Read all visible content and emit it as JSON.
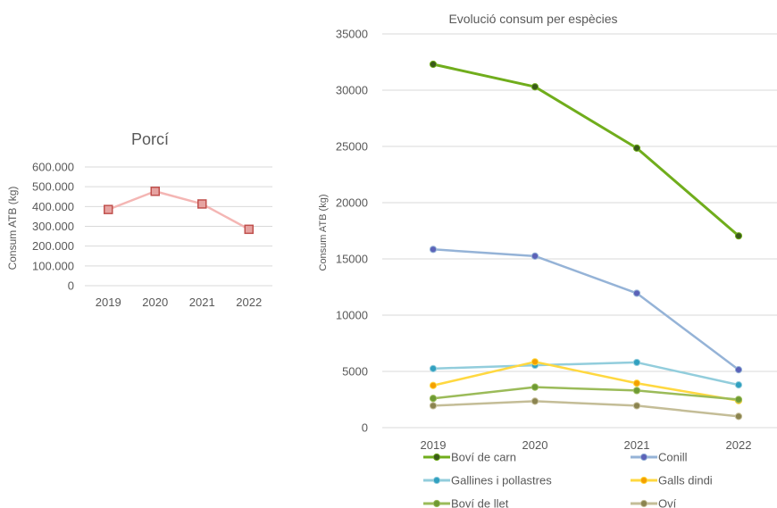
{
  "chart_data": [
    {
      "type": "line",
      "title": "Porcí",
      "xlabel": "",
      "ylabel": "Consum ATB (kg)",
      "categories": [
        "2019",
        "2020",
        "2021",
        "2022"
      ],
      "ylim": [
        0,
        600000
      ],
      "yticks": [
        "0",
        "100.000",
        "200.000",
        "300.000",
        "400.000",
        "500.000",
        "600.000"
      ],
      "grid": true,
      "series": [
        {
          "values": [
            385000,
            477000,
            413000,
            285000
          ],
          "color": "#f4b6b4",
          "marker_color": "#c0504d",
          "marker_fill": "#e6a3a1"
        }
      ]
    },
    {
      "type": "line",
      "title": "Evolució consum per espècies",
      "xlabel": "",
      "ylabel": "Consum ATB (kg)",
      "categories": [
        "2019",
        "2020",
        "2021",
        "2022"
      ],
      "ylim": [
        0,
        35000
      ],
      "yticks": [
        "0",
        "5000",
        "10000",
        "15000",
        "20000",
        "25000",
        "30000",
        "35000"
      ],
      "grid": true,
      "legend_position": "bottom",
      "series": [
        {
          "name": "Boví de carn",
          "values": [
            32300,
            30300,
            24850,
            17050
          ],
          "color": "#70ad1c",
          "marker_color": "#3a5a1a"
        },
        {
          "name": "Conill",
          "values": [
            15850,
            15250,
            11950,
            5150
          ],
          "color": "#95b3d7",
          "marker_color": "#5b62b8"
        },
        {
          "name": "Gallines i pollastres",
          "values": [
            5250,
            5550,
            5800,
            3800
          ],
          "color": "#92cddc",
          "marker_color": "#31a0c0"
        },
        {
          "name": "Galls dindi",
          "values": [
            3750,
            5850,
            3950,
            2400
          ],
          "color": "#ffd840",
          "marker_color": "#f5a000"
        },
        {
          "name": "Boví de llet",
          "values": [
            2600,
            3600,
            3300,
            2500
          ],
          "color": "#9bbb59",
          "marker_color": "#6e9a34"
        },
        {
          "name": "Oví",
          "values": [
            1950,
            2350,
            1950,
            1000
          ],
          "color": "#c4bd97",
          "marker_color": "#8b8450"
        }
      ]
    }
  ]
}
